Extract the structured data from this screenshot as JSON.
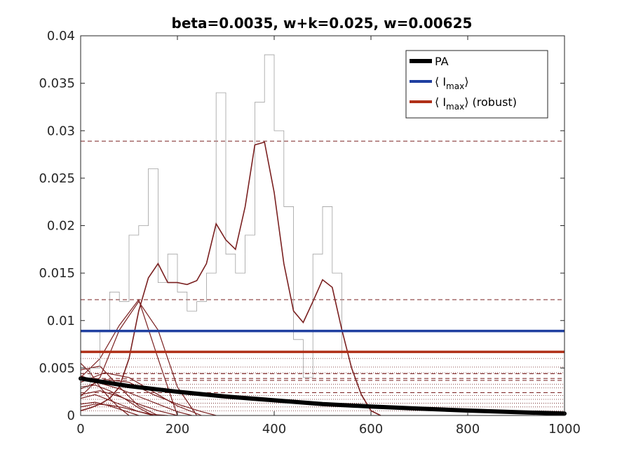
{
  "chart_data": {
    "type": "line",
    "title": "beta=0.0035, w+k=0.025, w=0.00625",
    "xlabel": "",
    "ylabel": "",
    "xlim": [
      0,
      1000
    ],
    "ylim": [
      0,
      0.04
    ],
    "xticks": [
      "0",
      "200",
      "400",
      "600",
      "800",
      "1000"
    ],
    "yticks": [
      "0",
      "0.005",
      "0.01",
      "0.015",
      "0.02",
      "0.025",
      "0.03",
      "0.035",
      "0.04"
    ],
    "grid": false,
    "legend_position": "top-right",
    "legend": [
      {
        "label": "PA",
        "sub": "",
        "suffix": "",
        "color": "#000000"
      },
      {
        "label": "⟨ I",
        "sub": "max",
        "suffix": "⟩",
        "color": "#1f3fa0"
      },
      {
        "label": "⟨ I",
        "sub": "max",
        "suffix": "⟩ (robust)",
        "color": "#b03018"
      }
    ],
    "colors": {
      "PA": "#000000",
      "Imax": "#1f3fa0",
      "Imax_robust": "#b03018",
      "trajectories": "#7a2020",
      "raw": "#a0a0a0"
    },
    "series": [
      {
        "name": "PA",
        "x": [
          0,
          100,
          200,
          300,
          400,
          500,
          600,
          700,
          800,
          900,
          1000
        ],
        "values": [
          0.0039,
          0.0031,
          0.0025,
          0.002,
          0.0016,
          0.0012,
          0.00095,
          0.00072,
          0.00052,
          0.00035,
          0.0002
        ]
      },
      {
        "name": "⟨ Imax⟩",
        "constant": 0.0089
      },
      {
        "name": "⟨ Imax⟩ (robust)",
        "constant": 0.0067
      }
    ],
    "main_trajectory": {
      "x": [
        0,
        20,
        40,
        60,
        80,
        100,
        120,
        140,
        160,
        180,
        200,
        220,
        240,
        260,
        280,
        300,
        320,
        340,
        360,
        380,
        400,
        420,
        440,
        460,
        480,
        500,
        520,
        540,
        560,
        580,
        600,
        620
      ],
      "values": [
        0.0005,
        0.0008,
        0.0012,
        0.0018,
        0.003,
        0.006,
        0.011,
        0.0145,
        0.016,
        0.014,
        0.014,
        0.0138,
        0.0142,
        0.016,
        0.0202,
        0.0185,
        0.0175,
        0.022,
        0.0285,
        0.0288,
        0.0235,
        0.016,
        0.011,
        0.0098,
        0.012,
        0.0143,
        0.0135,
        0.009,
        0.005,
        0.0022,
        0.0005,
        0.0
      ]
    },
    "raw_signal": {
      "x": [
        0,
        20,
        40,
        60,
        80,
        100,
        120,
        140,
        160,
        180,
        200,
        220,
        240,
        260,
        280,
        300,
        320,
        340,
        360,
        380,
        400,
        420,
        440,
        460,
        480,
        500,
        520,
        540
      ],
      "values": [
        0.003,
        0.005,
        0.009,
        0.013,
        0.012,
        0.019,
        0.02,
        0.026,
        0.014,
        0.017,
        0.013,
        0.011,
        0.012,
        0.015,
        0.034,
        0.017,
        0.015,
        0.019,
        0.033,
        0.038,
        0.03,
        0.022,
        0.008,
        0.004,
        0.017,
        0.022,
        0.015,
        0.006
      ]
    },
    "other_trajectories": [
      {
        "x": [
          0,
          40,
          80,
          120,
          160,
          200,
          240
        ],
        "values": [
          0.002,
          0.004,
          0.009,
          0.012,
          0.009,
          0.003,
          0.0
        ]
      },
      {
        "x": [
          0,
          40,
          80,
          120,
          160,
          200
        ],
        "values": [
          0.004,
          0.006,
          0.0095,
          0.0122,
          0.006,
          0.0
        ]
      },
      {
        "x": [
          0,
          50,
          100,
          150,
          200,
          250
        ],
        "values": [
          0.0035,
          0.0045,
          0.004,
          0.0025,
          0.001,
          0.0
        ]
      },
      {
        "x": [
          0,
          50,
          100,
          150,
          200,
          250,
          280
        ],
        "values": [
          0.0028,
          0.0038,
          0.0035,
          0.0022,
          0.0012,
          0.0004,
          0.0
        ]
      },
      {
        "x": [
          0,
          40,
          80,
          120,
          160,
          200
        ],
        "values": [
          0.0022,
          0.0026,
          0.002,
          0.0012,
          0.0005,
          0.0
        ]
      },
      {
        "x": [
          0,
          30,
          60,
          90,
          120,
          150
        ],
        "values": [
          0.0018,
          0.0022,
          0.0016,
          0.001,
          0.0004,
          0.0
        ]
      },
      {
        "x": [
          0,
          30,
          60,
          90,
          120
        ],
        "values": [
          0.0012,
          0.0014,
          0.001,
          0.0005,
          0.0
        ]
      },
      {
        "x": [
          0,
          30,
          60,
          90,
          120,
          150,
          180
        ],
        "values": [
          0.0009,
          0.0012,
          0.0011,
          0.0008,
          0.0004,
          0.0001,
          0.0
        ]
      },
      {
        "x": [
          0,
          40,
          80,
          120,
          160
        ],
        "values": [
          0.0048,
          0.0052,
          0.003,
          0.001,
          0.0
        ]
      },
      {
        "x": [
          0,
          20,
          40,
          60,
          80,
          100
        ],
        "values": [
          0.0055,
          0.0045,
          0.003,
          0.0018,
          0.0008,
          0.0
        ]
      },
      {
        "x": [
          0,
          30,
          60,
          90,
          120,
          150
        ],
        "values": [
          0.003,
          0.0032,
          0.0026,
          0.0018,
          0.0008,
          0.0
        ]
      },
      {
        "x": [
          0,
          40,
          80,
          120,
          160,
          200,
          230
        ],
        "values": [
          0.0042,
          0.0034,
          0.0028,
          0.002,
          0.0012,
          0.0004,
          0.0
        ]
      }
    ],
    "dashed_lines": [
      0.0289,
      0.0122,
      0.0044,
      0.0039,
      0.0037,
      0.0024
    ],
    "dotted_lines": [
      0.006,
      0.0051,
      0.0045,
      0.0033,
      0.0029,
      0.0021,
      0.0017,
      0.0013,
      0.0009,
      0.0005
    ]
  }
}
